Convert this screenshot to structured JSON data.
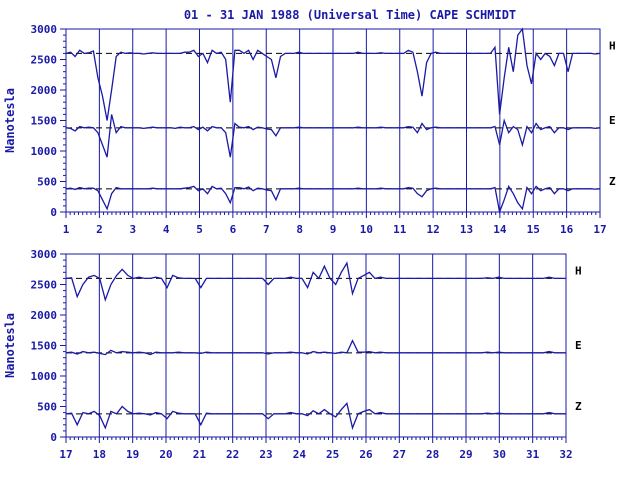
{
  "title": "01 - 31 JAN 1988 (Universal Time) CAPE SCHMIDT",
  "colors": {
    "trace": "#1a1aa6",
    "frame": "#1a1aa6",
    "background": "#ffffff"
  },
  "chart_data": [
    {
      "type": "line",
      "ylabel": "Nanotesla",
      "ylim": [
        0,
        3000
      ],
      "yticks": [
        0,
        500,
        1000,
        1500,
        2000,
        2500,
        3000
      ],
      "xlim": [
        1,
        17
      ],
      "xticks": [
        "1",
        "2",
        "3",
        "4",
        "5",
        "6",
        "7",
        "8",
        "9",
        "10",
        "11",
        "12",
        "13",
        "14",
        "15",
        "16",
        "17"
      ],
      "grid": "vertical dashed at each day",
      "series": [
        {
          "name": "H",
          "baseline": 2600,
          "values": [
            2600,
            2620,
            2550,
            2650,
            2600,
            2610,
            2640,
            2200,
            1900,
            1500,
            2000,
            2550,
            2620,
            2600,
            2610,
            2600,
            2600,
            2590,
            2600,
            2610,
            2600,
            2600,
            2600,
            2600,
            2600,
            2600,
            2620,
            2620,
            2650,
            2550,
            2600,
            2450,
            2650,
            2600,
            2620,
            2500,
            1800,
            2650,
            2650,
            2600,
            2650,
            2500,
            2650,
            2600,
            2550,
            2500,
            2200,
            2550,
            2600,
            2600,
            2600,
            2620,
            2600,
            2600,
            2600,
            2600,
            2600,
            2600,
            2600,
            2600,
            2600,
            2600,
            2600,
            2600,
            2620,
            2600,
            2600,
            2600,
            2600,
            2610,
            2600,
            2600,
            2600,
            2600,
            2600,
            2650,
            2620,
            2300,
            1900,
            2450,
            2600,
            2620,
            2600,
            2600,
            2600,
            2600,
            2600,
            2600,
            2600,
            2600,
            2600,
            2600,
            2600,
            2600,
            2700,
            1600,
            2200,
            2700,
            2300,
            2900,
            3000,
            2400,
            2100,
            2600,
            2500,
            2600,
            2550,
            2400,
            2600,
            2600,
            2300,
            2600,
            2600,
            2600,
            2600,
            2600,
            2590,
            2600
          ]
        },
        {
          "name": "E",
          "baseline": 1380,
          "values": [
            1380,
            1370,
            1330,
            1400,
            1380,
            1390,
            1380,
            1300,
            1100,
            900,
            1600,
            1300,
            1400,
            1380,
            1380,
            1380,
            1380,
            1370,
            1380,
            1390,
            1380,
            1380,
            1380,
            1380,
            1370,
            1390,
            1380,
            1380,
            1400,
            1350,
            1390,
            1330,
            1400,
            1380,
            1380,
            1300,
            900,
            1450,
            1390,
            1380,
            1400,
            1350,
            1390,
            1380,
            1360,
            1350,
            1250,
            1380,
            1380,
            1380,
            1380,
            1390,
            1380,
            1380,
            1380,
            1380,
            1380,
            1380,
            1380,
            1380,
            1380,
            1380,
            1380,
            1380,
            1390,
            1380,
            1380,
            1380,
            1380,
            1390,
            1380,
            1380,
            1380,
            1380,
            1380,
            1400,
            1390,
            1300,
            1450,
            1350,
            1380,
            1390,
            1380,
            1380,
            1380,
            1380,
            1380,
            1380,
            1380,
            1380,
            1380,
            1380,
            1380,
            1380,
            1400,
            1100,
            1500,
            1300,
            1400,
            1350,
            1100,
            1400,
            1300,
            1450,
            1350,
            1380,
            1400,
            1300,
            1380,
            1380,
            1350,
            1380,
            1380,
            1380,
            1380,
            1380,
            1370,
            1380
          ]
        },
        {
          "name": "Z",
          "baseline": 380,
          "values": [
            380,
            390,
            370,
            400,
            380,
            390,
            390,
            350,
            200,
            50,
            300,
            400,
            380,
            380,
            380,
            380,
            380,
            380,
            380,
            390,
            380,
            380,
            380,
            380,
            380,
            380,
            390,
            400,
            420,
            350,
            380,
            300,
            420,
            380,
            390,
            300,
            150,
            400,
            400,
            380,
            410,
            350,
            390,
            380,
            360,
            350,
            200,
            380,
            380,
            380,
            380,
            390,
            380,
            380,
            380,
            380,
            380,
            380,
            380,
            380,
            380,
            380,
            380,
            380,
            390,
            380,
            380,
            380,
            380,
            390,
            380,
            380,
            380,
            380,
            380,
            400,
            390,
            300,
            250,
            350,
            380,
            390,
            380,
            380,
            380,
            380,
            380,
            380,
            380,
            380,
            380,
            380,
            380,
            380,
            400,
            0,
            200,
            420,
            300,
            150,
            50,
            400,
            300,
            420,
            350,
            380,
            400,
            300,
            380,
            380,
            350,
            380,
            380,
            380,
            380,
            380,
            375,
            380
          ]
        }
      ]
    },
    {
      "type": "line",
      "ylabel": "Nanotesla",
      "ylim": [
        0,
        3000
      ],
      "yticks": [
        0,
        500,
        1000,
        1500,
        2000,
        2500,
        3000
      ],
      "xlim": [
        17,
        32
      ],
      "xticks": [
        "17",
        "18",
        "19",
        "20",
        "21",
        "22",
        "23",
        "24",
        "25",
        "26",
        "27",
        "28",
        "29",
        "30",
        "31",
        "32"
      ],
      "grid": "vertical dashed at each day",
      "series": [
        {
          "name": "H",
          "baseline": 2600,
          "values": [
            2600,
            2610,
            2300,
            2500,
            2620,
            2650,
            2600,
            2250,
            2500,
            2650,
            2750,
            2650,
            2600,
            2620,
            2600,
            2600,
            2620,
            2600,
            2450,
            2650,
            2610,
            2600,
            2600,
            2600,
            2450,
            2600,
            2600,
            2600,
            2600,
            2600,
            2600,
            2600,
            2600,
            2600,
            2600,
            2600,
            2500,
            2600,
            2600,
            2600,
            2620,
            2600,
            2600,
            2450,
            2700,
            2600,
            2800,
            2600,
            2500,
            2700,
            2850,
            2350,
            2600,
            2650,
            2700,
            2600,
            2620,
            2600,
            2600,
            2600,
            2600,
            2600,
            2600,
            2600,
            2600,
            2600,
            2600,
            2600,
            2600,
            2600,
            2600,
            2600,
            2600,
            2600,
            2600,
            2610,
            2600,
            2620,
            2600,
            2600,
            2600,
            2600,
            2600,
            2600,
            2600,
            2600,
            2620,
            2600,
            2600,
            2600
          ]
        },
        {
          "name": "E",
          "baseline": 1380,
          "values": [
            1380,
            1390,
            1360,
            1400,
            1380,
            1390,
            1370,
            1350,
            1420,
            1380,
            1400,
            1390,
            1380,
            1390,
            1380,
            1350,
            1390,
            1380,
            1380,
            1380,
            1390,
            1380,
            1380,
            1380,
            1370,
            1390,
            1380,
            1380,
            1380,
            1380,
            1380,
            1380,
            1380,
            1380,
            1380,
            1380,
            1360,
            1380,
            1380,
            1380,
            1390,
            1380,
            1380,
            1360,
            1400,
            1380,
            1390,
            1380,
            1370,
            1390,
            1380,
            1580,
            1390,
            1390,
            1400,
            1380,
            1390,
            1380,
            1380,
            1380,
            1380,
            1380,
            1380,
            1380,
            1380,
            1380,
            1380,
            1380,
            1380,
            1380,
            1380,
            1380,
            1380,
            1380,
            1380,
            1390,
            1380,
            1390,
            1380,
            1380,
            1380,
            1380,
            1380,
            1380,
            1380,
            1380,
            1400,
            1380,
            1380,
            1380
          ]
        },
        {
          "name": "Z",
          "baseline": 380,
          "values": [
            380,
            390,
            200,
            400,
            380,
            420,
            350,
            150,
            420,
            380,
            500,
            420,
            380,
            390,
            380,
            360,
            400,
            380,
            300,
            420,
            390,
            380,
            380,
            380,
            200,
            390,
            380,
            380,
            380,
            380,
            380,
            380,
            380,
            380,
            380,
            380,
            300,
            380,
            380,
            380,
            400,
            380,
            380,
            350,
            430,
            380,
            450,
            380,
            330,
            450,
            550,
            150,
            380,
            420,
            450,
            380,
            400,
            380,
            380,
            380,
            380,
            380,
            380,
            380,
            380,
            380,
            380,
            380,
            380,
            380,
            380,
            380,
            380,
            380,
            380,
            390,
            380,
            390,
            380,
            380,
            380,
            380,
            380,
            380,
            380,
            380,
            400,
            380,
            380,
            380
          ]
        }
      ]
    }
  ]
}
